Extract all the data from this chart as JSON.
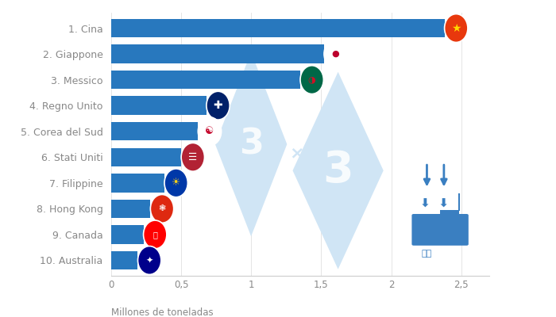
{
  "categories": [
    "1. Cina",
    "2. Giappone",
    "3. Messico",
    "4. Regno Unito",
    "5. Corea del Sud",
    "6. Stati Uniti",
    "7. Filippine",
    "8. Hong Kong",
    "9. Canada",
    "10. Australia"
  ],
  "values": [
    2.38,
    1.52,
    1.35,
    0.68,
    0.62,
    0.5,
    0.38,
    0.28,
    0.23,
    0.19
  ],
  "bar_color": "#2878BE",
  "background_color": "#ffffff",
  "xlabel": "Millones de toneladas",
  "xlim": [
    0,
    2.7
  ],
  "xticks": [
    0,
    0.5,
    1,
    1.5,
    2,
    2.5
  ],
  "xtick_labels": [
    "0",
    "0,5",
    "1",
    "1,5",
    "2",
    "2,5"
  ],
  "label_color": "#888888",
  "bar_height": 0.72,
  "watermark_color": "#d0e5f5",
  "label_fontsize": 9.0,
  "tick_fontsize": 8.5,
  "flag_colors": {
    "1. Cina": [
      "#e8380d",
      "#e8380d"
    ],
    "2. Giappone": [
      "#e8380d",
      "#ffffff"
    ],
    "3. Messico": [
      "#006847",
      "#ffffff"
    ],
    "4. Regno Unito": [
      "#012169",
      "#ffffff"
    ],
    "5. Corea del Sud": [
      "#ffffff",
      "#c60c30"
    ],
    "6. Stati Uniti": [
      "#b22234",
      "#ffffff"
    ],
    "7. Filippine": [
      "#0038a8",
      "#ffffff"
    ],
    "8. Hong Kong": [
      "#de2910",
      "#ffffff"
    ],
    "9. Canada": [
      "#ff0000",
      "#ffffff"
    ],
    "10. Australia": [
      "#00008b",
      "#ffffff"
    ]
  }
}
